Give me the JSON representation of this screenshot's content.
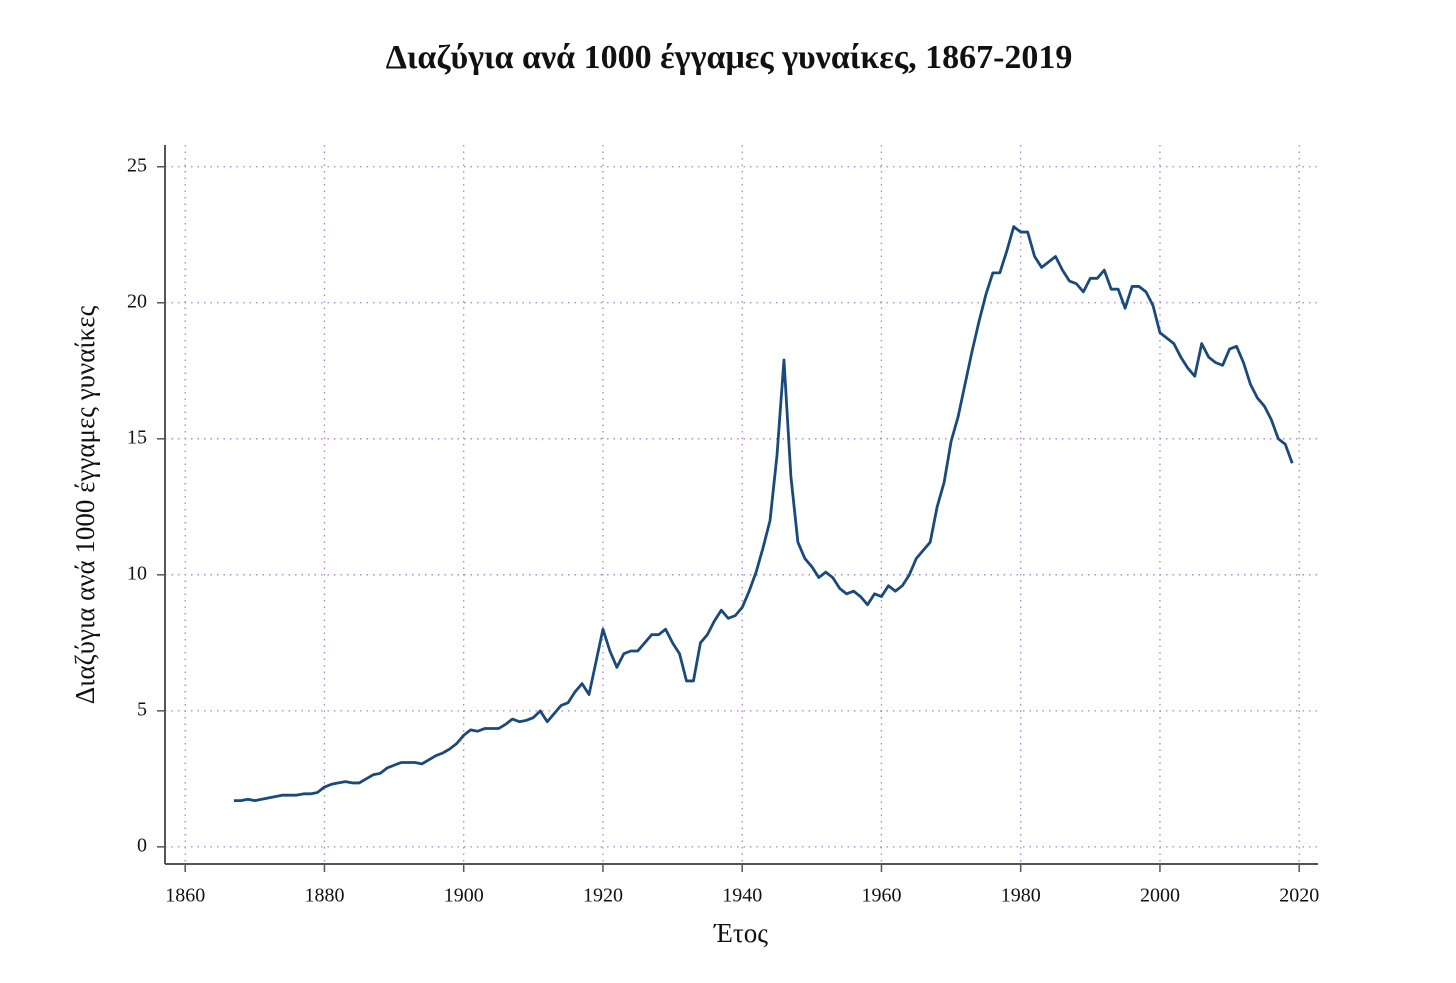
{
  "chart_data": {
    "type": "line",
    "title": "Διαζύγια ανά 1000 έγγαμες γυναίκες, 1867-2019",
    "x_label": "Έτος",
    "y_label": "Διαζύγια ανά 1000 έγγαμες γυναίκες",
    "x": [
      1867,
      1868,
      1869,
      1870,
      1871,
      1872,
      1873,
      1874,
      1875,
      1876,
      1877,
      1878,
      1879,
      1880,
      1881,
      1882,
      1883,
      1884,
      1885,
      1886,
      1887,
      1888,
      1889,
      1890,
      1891,
      1892,
      1893,
      1894,
      1895,
      1896,
      1897,
      1898,
      1899,
      1900,
      1901,
      1902,
      1903,
      1904,
      1905,
      1906,
      1907,
      1908,
      1909,
      1910,
      1911,
      1912,
      1913,
      1914,
      1915,
      1916,
      1917,
      1918,
      1919,
      1920,
      1921,
      1922,
      1923,
      1924,
      1925,
      1926,
      1927,
      1928,
      1929,
      1930,
      1931,
      1932,
      1933,
      1934,
      1935,
      1936,
      1937,
      1938,
      1939,
      1940,
      1941,
      1942,
      1943,
      1944,
      1945,
      1946,
      1947,
      1948,
      1949,
      1950,
      1951,
      1952,
      1953,
      1954,
      1955,
      1956,
      1957,
      1958,
      1959,
      1960,
      1961,
      1962,
      1963,
      1964,
      1965,
      1966,
      1967,
      1968,
      1969,
      1970,
      1971,
      1972,
      1973,
      1974,
      1975,
      1976,
      1977,
      1978,
      1979,
      1980,
      1981,
      1982,
      1983,
      1984,
      1985,
      1986,
      1987,
      1988,
      1989,
      1990,
      1991,
      1992,
      1993,
      1994,
      1995,
      1996,
      1997,
      1998,
      1999,
      2000,
      2001,
      2002,
      2003,
      2004,
      2005,
      2006,
      2007,
      2008,
      2009,
      2010,
      2011,
      2012,
      2013,
      2014,
      2015,
      2016,
      2017,
      2018,
      2019
    ],
    "series": [
      {
        "name": "Διαζύγια",
        "color": "#1a4a7a",
        "values": [
          1.7,
          1.7,
          1.75,
          1.7,
          1.75,
          1.8,
          1.85,
          1.9,
          1.9,
          1.9,
          1.95,
          1.95,
          2.0,
          2.2,
          2.3,
          2.35,
          2.4,
          2.35,
          2.35,
          2.5,
          2.65,
          2.7,
          2.9,
          3.0,
          3.1,
          3.1,
          3.1,
          3.05,
          3.2,
          3.35,
          3.45,
          3.6,
          3.8,
          4.1,
          4.3,
          4.25,
          4.35,
          4.35,
          4.35,
          4.5,
          4.7,
          4.6,
          4.65,
          4.75,
          5.0,
          4.6,
          4.9,
          5.2,
          5.3,
          5.7,
          6.0,
          5.6,
          6.8,
          8.0,
          7.2,
          6.6,
          7.1,
          7.2,
          7.2,
          7.5,
          7.8,
          7.8,
          8.0,
          7.5,
          7.1,
          6.1,
          6.1,
          7.5,
          7.8,
          8.3,
          8.7,
          8.4,
          8.5,
          8.8,
          9.4,
          10.1,
          11.0,
          12.0,
          14.4,
          17.9,
          13.6,
          11.2,
          10.6,
          10.3,
          9.9,
          10.1,
          9.9,
          9.5,
          9.3,
          9.4,
          9.2,
          8.9,
          9.3,
          9.2,
          9.6,
          9.4,
          9.6,
          10.0,
          10.6,
          10.9,
          11.2,
          12.5,
          13.4,
          14.9,
          15.8,
          17.0,
          18.2,
          19.3,
          20.3,
          21.1,
          21.1,
          21.9,
          22.8,
          22.6,
          22.6,
          21.7,
          21.3,
          21.5,
          21.7,
          21.2,
          20.8,
          20.7,
          20.4,
          20.9,
          20.9,
          21.2,
          20.5,
          20.5,
          19.8,
          20.6,
          20.6,
          20.4,
          19.9,
          18.9,
          18.7,
          18.5,
          18.0,
          17.6,
          17.3,
          18.5,
          18.0,
          17.8,
          17.7,
          18.3,
          18.4,
          17.8,
          17.0,
          16.5,
          16.2,
          15.7,
          15.0,
          14.8,
          14.1
        ]
      }
    ],
    "xlim": [
      1857.1,
      2022.7
    ],
    "ylim": [
      -0.63,
      25.8
    ],
    "xticks": [
      1860,
      1880,
      1900,
      1920,
      1940,
      1960,
      1980,
      2000,
      2020
    ],
    "yticks": [
      0,
      5,
      10,
      15,
      20,
      25
    ],
    "grid": true,
    "grid_color": "#b07fd0"
  }
}
